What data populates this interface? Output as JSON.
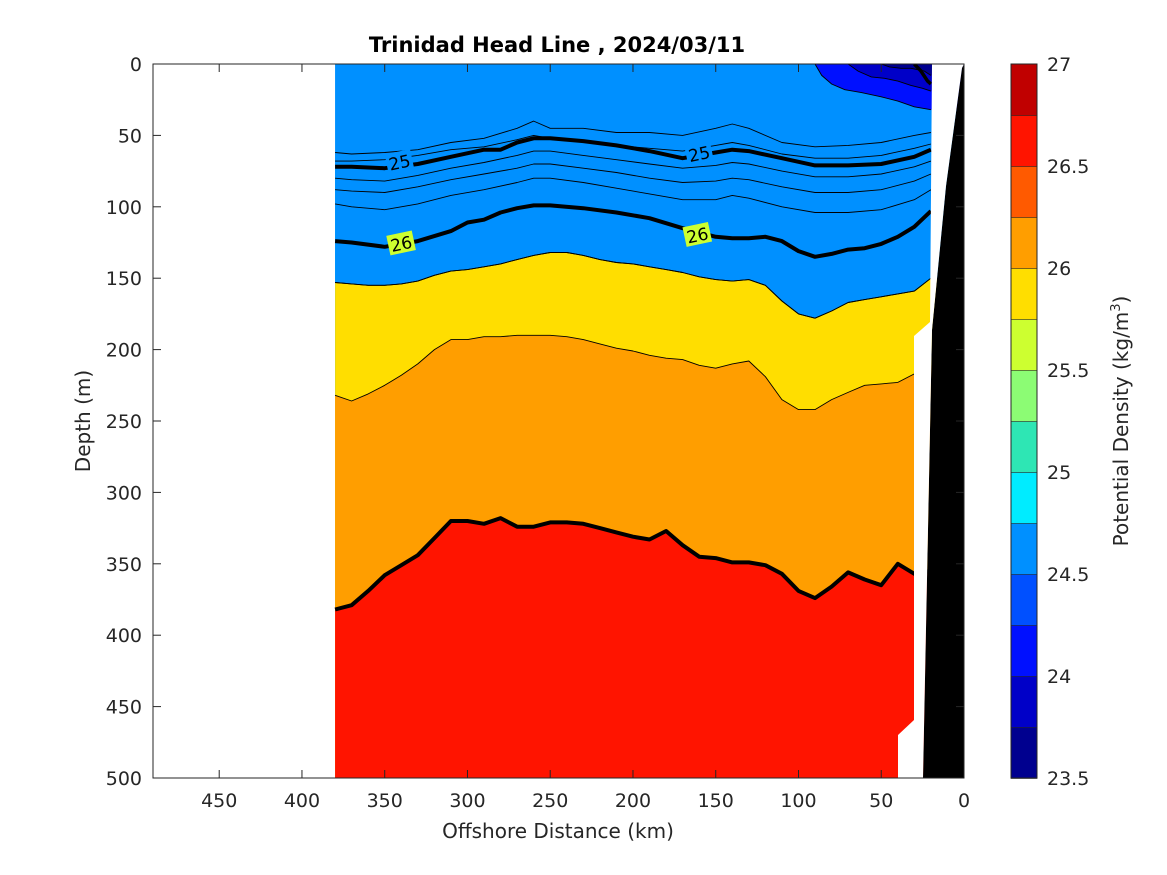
{
  "chart_data": {
    "type": "heatmap",
    "plot_style": "filled-contour",
    "title": "Trinidad Head Line , 2024/03/11",
    "xlabel": "Offshore Distance (km)",
    "ylabel": "Depth (m)",
    "colorbar_label": "Potential Density (kg/m",
    "colorbar_label_superscript": "3",
    "colorbar_label_suffix": ")",
    "xlim": [
      490,
      0
    ],
    "ylim": [
      500,
      0
    ],
    "x_axis_reversed": true,
    "y_axis_reversed": true,
    "x_ticks": [
      450,
      400,
      350,
      300,
      250,
      200,
      150,
      100,
      50,
      0
    ],
    "x_tick_labels": [
      "450",
      "400",
      "350",
      "300",
      "250",
      "200",
      "150",
      "100",
      "50",
      "0"
    ],
    "y_ticks": [
      0,
      50,
      100,
      150,
      200,
      250,
      300,
      350,
      400,
      450,
      500
    ],
    "y_tick_labels": [
      "0",
      "50",
      "100",
      "150",
      "200",
      "250",
      "300",
      "350",
      "400",
      "450",
      "500"
    ],
    "colorbar_range": [
      23.5,
      27
    ],
    "colorbar_step": 0.25,
    "colorbar_ticks": [
      23.5,
      24,
      24.5,
      25,
      25.5,
      26,
      26.5,
      27
    ],
    "colorbar_tick_labels": [
      "23.5",
      "24",
      "24.5",
      "25",
      "25.5",
      "26",
      "26.5",
      "27"
    ],
    "colormap": [
      "#00008f",
      "#0000c8",
      "#0010ff",
      "#0050ff",
      "#0090ff",
      "#00aaff",
      "#00ecff",
      "#2ee6b4",
      "#8cfc74",
      "#cdff30",
      "#ffde00",
      "#ff9e00",
      "#ff5a00",
      "#ff1400",
      "#c00000"
    ],
    "data_extent_x": [
      380,
      20
    ],
    "land_color": "#000000",
    "background_color": "#ffffff",
    "contours": [
      {
        "level": 24.5,
        "x": [
          380,
          370,
          350,
          330,
          310,
          290,
          270,
          260,
          250,
          230,
          210,
          190,
          170,
          150,
          140,
          130,
          110,
          90,
          70,
          50,
          30,
          20
        ],
        "depth": [
          62,
          63,
          62,
          60,
          55,
          52,
          45,
          40,
          45,
          45,
          48,
          48,
          50,
          45,
          42,
          45,
          55,
          58,
          57,
          55,
          50,
          48
        ]
      },
      {
        "level": 24.75,
        "x": [
          380,
          370,
          350,
          330,
          310,
          290,
          270,
          260,
          250,
          230,
          210,
          190,
          170,
          150,
          140,
          130,
          110,
          90,
          70,
          50,
          30,
          20
        ],
        "depth": [
          68,
          68,
          67,
          64,
          60,
          58,
          53,
          50,
          52,
          54,
          57,
          59,
          61,
          57,
          55,
          57,
          63,
          66,
          66,
          64,
          59,
          56
        ]
      },
      {
        "level": 25,
        "x": [
          380,
          370,
          350,
          330,
          310,
          290,
          280,
          270,
          260,
          250,
          230,
          210,
          190,
          170,
          150,
          140,
          130,
          110,
          90,
          70,
          50,
          30,
          20
        ],
        "depth": [
          72,
          72,
          73,
          70,
          65,
          60,
          60,
          55,
          52,
          52,
          54,
          57,
          61,
          66,
          62,
          60,
          61,
          66,
          71,
          71,
          70,
          65,
          60
        ]
      },
      {
        "level": 25.25,
        "x": [
          380,
          370,
          350,
          330,
          310,
          290,
          270,
          260,
          250,
          230,
          210,
          190,
          170,
          150,
          140,
          130,
          110,
          90,
          70,
          50,
          30,
          20
        ],
        "depth": [
          80,
          81,
          82,
          78,
          73,
          69,
          64,
          61,
          61,
          64,
          67,
          70,
          73,
          71,
          69,
          70,
          75,
          79,
          79,
          77,
          72,
          68
        ]
      },
      {
        "level": 25.5,
        "x": [
          380,
          370,
          350,
          330,
          310,
          290,
          270,
          260,
          250,
          230,
          210,
          190,
          170,
          150,
          140,
          130,
          110,
          90,
          70,
          50,
          30,
          20
        ],
        "depth": [
          88,
          89,
          90,
          86,
          81,
          77,
          73,
          70,
          70,
          73,
          76,
          80,
          83,
          82,
          80,
          81,
          86,
          90,
          90,
          88,
          82,
          77
        ]
      },
      {
        "level": 25.75,
        "x": [
          380,
          370,
          350,
          330,
          310,
          290,
          270,
          260,
          250,
          230,
          210,
          190,
          170,
          150,
          140,
          130,
          110,
          90,
          70,
          50,
          30,
          20
        ],
        "depth": [
          98,
          100,
          102,
          98,
          92,
          88,
          83,
          80,
          80,
          83,
          87,
          91,
          95,
          95,
          92,
          94,
          100,
          104,
          104,
          102,
          95,
          88
        ]
      },
      {
        "level": 26,
        "x": [
          380,
          370,
          350,
          330,
          310,
          300,
          290,
          280,
          270,
          260,
          250,
          230,
          210,
          190,
          170,
          150,
          140,
          130,
          120,
          110,
          100,
          90,
          80,
          70,
          60,
          50,
          40,
          30,
          20
        ],
        "depth": [
          124,
          125,
          128,
          124,
          117,
          111,
          109,
          104,
          101,
          99,
          99,
          101,
          104,
          108,
          115,
          121,
          122,
          122,
          121,
          124,
          131,
          135,
          133,
          130,
          129,
          126,
          121,
          114,
          103
        ]
      },
      {
        "level": 26.25,
        "x": [
          380,
          370,
          360,
          350,
          340,
          330,
          320,
          310,
          300,
          290,
          280,
          270,
          260,
          250,
          240,
          230,
          220,
          210,
          200,
          190,
          180,
          170,
          160,
          150,
          140,
          130,
          120,
          110,
          100,
          90,
          80,
          70,
          60,
          50,
          40,
          30,
          20
        ],
        "depth": [
          153,
          154,
          155,
          155,
          154,
          152,
          148,
          145,
          144,
          142,
          140,
          137,
          134,
          132,
          132,
          134,
          137,
          139,
          140,
          142,
          144,
          146,
          149,
          151,
          152,
          151,
          155,
          166,
          175,
          178,
          173,
          167,
          165,
          163,
          161,
          159,
          150
        ]
      }
    ],
    "fill_boundaries": [
      {
        "upper_class": 26.25,
        "x": [
          380,
          370,
          360,
          350,
          340,
          330,
          320,
          310,
          300,
          290,
          280,
          270,
          260,
          250,
          240,
          230,
          220,
          210,
          200,
          190,
          180,
          170,
          160,
          150,
          140,
          130,
          120,
          110,
          100,
          90,
          80,
          70,
          60,
          50,
          40,
          30,
          20
        ],
        "depth": [
          153,
          154,
          155,
          155,
          154,
          152,
          148,
          145,
          144,
          142,
          140,
          137,
          134,
          132,
          132,
          134,
          137,
          139,
          140,
          142,
          144,
          146,
          149,
          151,
          152,
          151,
          155,
          166,
          175,
          178,
          173,
          167,
          165,
          163,
          161,
          159,
          150
        ]
      },
      {
        "upper_class": 26.5,
        "x": [
          380,
          370,
          360,
          350,
          340,
          330,
          320,
          310,
          300,
          290,
          280,
          270,
          260,
          250,
          240,
          230,
          220,
          210,
          200,
          190,
          180,
          170,
          160,
          150,
          140,
          130,
          120,
          110,
          100,
          90,
          80,
          70,
          60,
          50,
          40,
          30,
          20
        ],
        "depth": [
          232,
          236,
          231,
          225,
          218,
          210,
          200,
          193,
          193,
          191,
          191,
          190,
          190,
          190,
          191,
          193,
          196,
          199,
          201,
          204,
          206,
          207,
          211,
          213,
          210,
          208,
          219,
          235,
          242,
          242,
          235,
          230,
          225,
          224,
          223,
          217,
          211
        ]
      },
      {
        "upper_class": 27,
        "x": [
          380,
          370,
          360,
          350,
          340,
          330,
          320,
          310,
          300,
          290,
          280,
          270,
          260,
          250,
          240,
          230,
          220,
          210,
          200,
          190,
          180,
          170,
          160,
          150,
          140,
          130,
          120,
          110,
          100,
          90,
          80,
          70,
          60,
          50,
          40,
          30,
          20
        ],
        "depth": [
          382,
          379,
          369,
          358,
          351,
          344,
          332,
          320,
          320,
          322,
          318,
          324,
          324,
          321,
          321,
          322,
          325,
          328,
          331,
          333,
          327,
          337,
          345,
          346,
          349,
          349,
          351,
          357,
          369,
          374,
          366,
          356,
          361,
          365,
          350,
          357,
          355
        ]
      }
    ],
    "contour_labels": [
      {
        "text": "25",
        "x": 341,
        "depth": 69
      },
      {
        "text": "25",
        "x": 160,
        "depth": 63
      },
      {
        "text": "26",
        "x": 340,
        "depth": 126
      },
      {
        "text": "26",
        "x": 161,
        "depth": 120
      }
    ],
    "surface_patch": {
      "upper_class": 24.25,
      "description": "low-density water near the coast"
    },
    "surface_contours": [
      {
        "level": 24.25,
        "x": [
          90,
          86,
          80,
          72,
          62,
          50,
          40,
          30,
          20
        ],
        "depth": [
          0,
          8,
          14,
          18,
          20,
          23,
          26,
          30,
          32
        ]
      },
      {
        "level": 24,
        "x": [
          70,
          64,
          56,
          48,
          40,
          32,
          25,
          20
        ],
        "depth": [
          0,
          5,
          9,
          10,
          12,
          15,
          17,
          19
        ]
      },
      {
        "level": 23.75,
        "x": [
          50,
          45,
          38,
          32,
          28,
          24,
          20
        ],
        "depth": [
          0,
          2,
          3,
          3,
          4,
          5,
          8
        ]
      },
      {
        "level": 24.5,
        "x": [
          30,
          26,
          22,
          20
        ],
        "depth": [
          0,
          5,
          12,
          14
        ]
      }
    ]
  }
}
